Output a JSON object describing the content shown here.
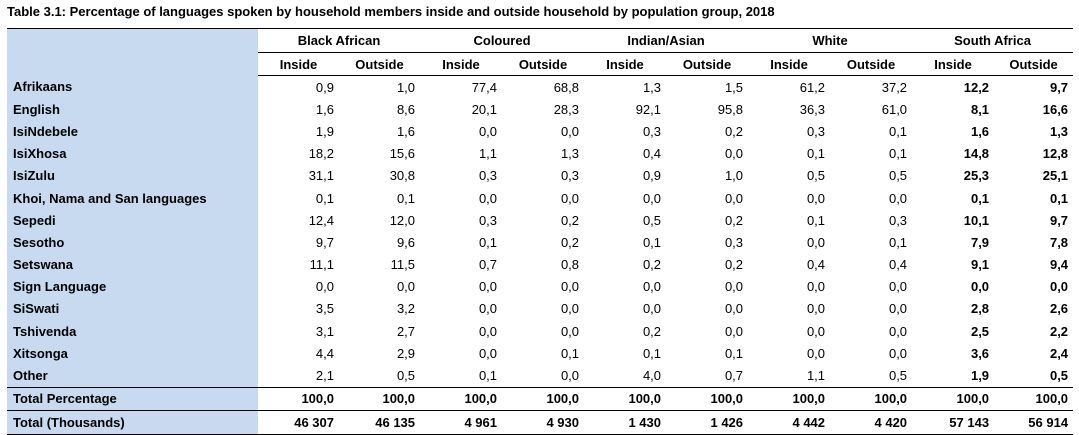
{
  "caption": "Table 3.1: Percentage of languages spoken by household members inside and outside household by population group, 2018",
  "groups": [
    "Black African",
    "Coloured",
    "Indian/Asian",
    "White",
    "South Africa"
  ],
  "subheaders": [
    "Inside",
    "Outside"
  ],
  "rows": [
    {
      "label": "Afrikaans",
      "values": [
        "0,9",
        "1,0",
        "77,4",
        "68,8",
        "1,3",
        "1,5",
        "61,2",
        "37,2",
        "12,2",
        "9,7"
      ]
    },
    {
      "label": "English",
      "values": [
        "1,6",
        "8,6",
        "20,1",
        "28,3",
        "92,1",
        "95,8",
        "36,3",
        "61,0",
        "8,1",
        "16,6"
      ]
    },
    {
      "label": "IsiNdebele",
      "values": [
        "1,9",
        "1,6",
        "0,0",
        "0,0",
        "0,3",
        "0,2",
        "0,3",
        "0,1",
        "1,6",
        "1,3"
      ]
    },
    {
      "label": "IsiXhosa",
      "values": [
        "18,2",
        "15,6",
        "1,1",
        "1,3",
        "0,4",
        "0,0",
        "0,1",
        "0,1",
        "14,8",
        "12,8"
      ]
    },
    {
      "label": "IsiZulu",
      "values": [
        "31,1",
        "30,8",
        "0,3",
        "0,3",
        "0,9",
        "1,0",
        "0,5",
        "0,5",
        "25,3",
        "25,1"
      ]
    },
    {
      "label": "Khoi, Nama and San languages",
      "values": [
        "0,1",
        "0,1",
        "0,0",
        "0,0",
        "0,0",
        "0,0",
        "0,0",
        "0,0",
        "0,1",
        "0,1"
      ]
    },
    {
      "label": "Sepedi",
      "values": [
        "12,4",
        "12,0",
        "0,3",
        "0,2",
        "0,5",
        "0,2",
        "0,1",
        "0,3",
        "10,1",
        "9,7"
      ]
    },
    {
      "label": "Sesotho",
      "values": [
        "9,7",
        "9,6",
        "0,1",
        "0,2",
        "0,1",
        "0,3",
        "0,0",
        "0,1",
        "7,9",
        "7,8"
      ]
    },
    {
      "label": "Setswana",
      "values": [
        "11,1",
        "11,5",
        "0,7",
        "0,8",
        "0,2",
        "0,2",
        "0,4",
        "0,4",
        "9,1",
        "9,4"
      ]
    },
    {
      "label": "Sign Language",
      "values": [
        "0,0",
        "0,0",
        "0,0",
        "0,0",
        "0,0",
        "0,0",
        "0,0",
        "0,0",
        "0,0",
        "0,0"
      ]
    },
    {
      "label": "SiSwati",
      "values": [
        "3,5",
        "3,2",
        "0,0",
        "0,0",
        "0,0",
        "0,0",
        "0,0",
        "0,0",
        "2,8",
        "2,6"
      ]
    },
    {
      "label": "Tshivenda",
      "values": [
        "3,1",
        "2,7",
        "0,0",
        "0,0",
        "0,2",
        "0,0",
        "0,0",
        "0,0",
        "2,5",
        "2,2"
      ]
    },
    {
      "label": "Xitsonga",
      "values": [
        "4,4",
        "2,9",
        "0,0",
        "0,1",
        "0,1",
        "0,1",
        "0,0",
        "0,0",
        "3,6",
        "2,4"
      ]
    },
    {
      "label": "Other",
      "values": [
        "2,1",
        "0,5",
        "0,1",
        "0,0",
        "4,0",
        "0,7",
        "1,1",
        "0,5",
        "1,9",
        "0,5"
      ]
    }
  ],
  "total_percentage": {
    "label": "Total Percentage",
    "values": [
      "100,0",
      "100,0",
      "100,0",
      "100,0",
      "100,0",
      "100,0",
      "100,0",
      "100,0",
      "100,0",
      "100,0"
    ]
  },
  "total_thousands": {
    "label": "Total (Thousands)",
    "values": [
      "46 307",
      "46 135",
      "4 961",
      "4 930",
      "1 430",
      "1 426",
      "4 442",
      "4 420",
      "57 143",
      "56 914"
    ]
  },
  "colors": {
    "label_column_bg": "#c7daf0"
  }
}
